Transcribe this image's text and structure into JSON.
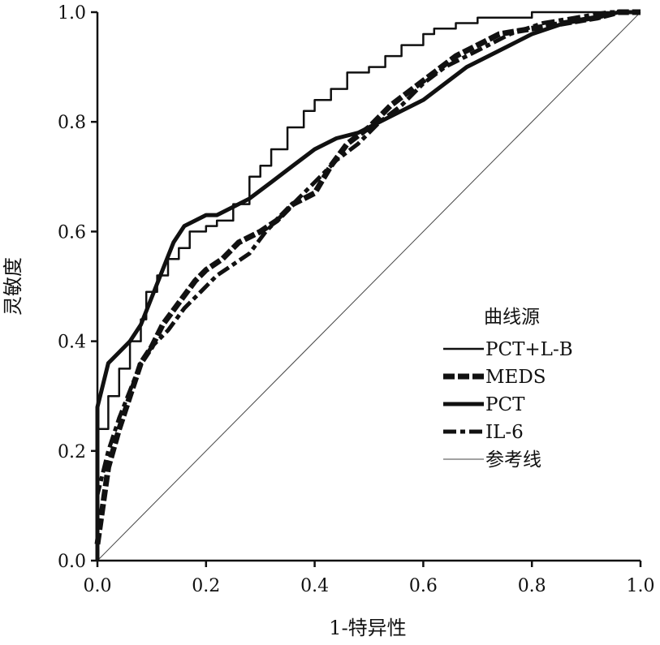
{
  "chart_data": {
    "type": "line",
    "title": "",
    "xlabel": "1-特异性",
    "ylabel": "灵敏度",
    "xlim": [
      0,
      1
    ],
    "ylim": [
      0,
      1
    ],
    "x_ticks": [
      "0.0",
      "0.2",
      "0.4",
      "0.6",
      "0.8",
      "1.0"
    ],
    "y_ticks": [
      "0.0",
      "0.2",
      "0.4",
      "0.6",
      "0.8",
      "1.0"
    ],
    "grid": false,
    "legend": {
      "title": "曲线源",
      "placement": "bottom-right",
      "entries": [
        "PCT+L-B",
        "MEDS",
        "PCT",
        "IL-6",
        "参考线"
      ]
    },
    "series": [
      {
        "name": "PCT+L-B",
        "style": "thin-solid",
        "color": "#111111",
        "x": [
          0.0,
          0.0,
          0.02,
          0.04,
          0.06,
          0.08,
          0.09,
          0.11,
          0.13,
          0.15,
          0.17,
          0.2,
          0.22,
          0.25,
          0.28,
          0.3,
          0.32,
          0.35,
          0.38,
          0.4,
          0.43,
          0.46,
          0.5,
          0.53,
          0.56,
          0.6,
          0.62,
          0.66,
          0.7,
          0.74,
          0.8,
          0.85,
          0.88,
          0.92,
          0.95,
          1.0
        ],
        "y": [
          0.0,
          0.17,
          0.24,
          0.3,
          0.35,
          0.4,
          0.44,
          0.49,
          0.52,
          0.55,
          0.57,
          0.6,
          0.61,
          0.62,
          0.65,
          0.7,
          0.72,
          0.75,
          0.79,
          0.82,
          0.84,
          0.86,
          0.89,
          0.9,
          0.92,
          0.94,
          0.96,
          0.97,
          0.98,
          0.99,
          0.99,
          1.0,
          1.0,
          1.0,
          1.0,
          1.0
        ]
      },
      {
        "name": "MEDS",
        "style": "thick-dashed",
        "color": "#111111",
        "x": [
          0.0,
          0.01,
          0.02,
          0.04,
          0.06,
          0.08,
          0.1,
          0.12,
          0.15,
          0.18,
          0.2,
          0.23,
          0.26,
          0.3,
          0.33,
          0.36,
          0.4,
          0.43,
          0.46,
          0.5,
          0.54,
          0.58,
          0.62,
          0.66,
          0.7,
          0.74,
          0.8,
          0.86,
          0.92,
          0.96,
          1.0
        ],
        "y": [
          0.03,
          0.1,
          0.17,
          0.24,
          0.3,
          0.36,
          0.39,
          0.43,
          0.47,
          0.51,
          0.53,
          0.55,
          0.58,
          0.6,
          0.62,
          0.65,
          0.67,
          0.72,
          0.76,
          0.79,
          0.83,
          0.86,
          0.89,
          0.92,
          0.94,
          0.96,
          0.97,
          0.98,
          0.99,
          1.0,
          1.0
        ]
      },
      {
        "name": "PCT",
        "style": "thick-solid",
        "color": "#111111",
        "x": [
          0.0,
          0.0,
          0.01,
          0.02,
          0.04,
          0.06,
          0.08,
          0.1,
          0.12,
          0.14,
          0.16,
          0.18,
          0.2,
          0.22,
          0.24,
          0.28,
          0.32,
          0.36,
          0.4,
          0.44,
          0.48,
          0.52,
          0.56,
          0.6,
          0.64,
          0.68,
          0.72,
          0.76,
          0.8,
          0.86,
          0.92,
          0.96,
          1.0
        ],
        "y": [
          0.0,
          0.28,
          0.32,
          0.36,
          0.38,
          0.4,
          0.43,
          0.48,
          0.53,
          0.58,
          0.61,
          0.62,
          0.63,
          0.63,
          0.64,
          0.66,
          0.69,
          0.72,
          0.75,
          0.77,
          0.78,
          0.8,
          0.82,
          0.84,
          0.87,
          0.9,
          0.92,
          0.94,
          0.96,
          0.98,
          0.99,
          1.0,
          1.0
        ]
      },
      {
        "name": "IL-6",
        "style": "dash-dot",
        "color": "#111111",
        "x": [
          0.0,
          0.0,
          0.02,
          0.04,
          0.06,
          0.08,
          0.1,
          0.13,
          0.16,
          0.19,
          0.22,
          0.25,
          0.28,
          0.31,
          0.34,
          0.37,
          0.4,
          0.44,
          0.48,
          0.52,
          0.56,
          0.6,
          0.64,
          0.68,
          0.72,
          0.76,
          0.82,
          0.88,
          0.94,
          1.0
        ],
        "y": [
          0.02,
          0.12,
          0.2,
          0.26,
          0.31,
          0.36,
          0.39,
          0.42,
          0.46,
          0.49,
          0.52,
          0.54,
          0.56,
          0.6,
          0.63,
          0.66,
          0.69,
          0.73,
          0.76,
          0.8,
          0.83,
          0.87,
          0.9,
          0.92,
          0.94,
          0.96,
          0.98,
          0.99,
          1.0,
          1.0
        ]
      },
      {
        "name": "参考线",
        "style": "hairline",
        "color": "#444444",
        "x": [
          0,
          1
        ],
        "y": [
          0,
          1
        ]
      }
    ]
  }
}
